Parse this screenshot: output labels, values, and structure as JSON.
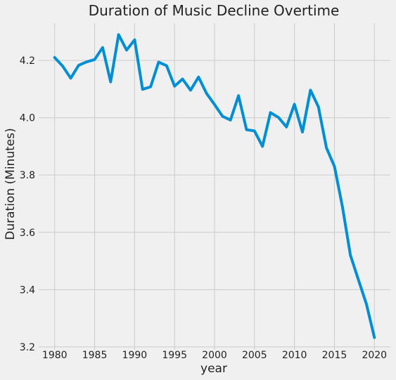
{
  "chart_data": {
    "type": "line",
    "title": "Duration of Music Decline Overtime",
    "xlabel": "year",
    "ylabel": "Duration (Minutes)",
    "xlim": [
      1978,
      2022
    ],
    "ylim": [
      3.19,
      4.33
    ],
    "xticks": [
      1980,
      1985,
      1990,
      1995,
      2000,
      2005,
      2010,
      2015,
      2020
    ],
    "yticks": [
      3.2,
      3.4,
      3.6,
      3.8,
      4.0,
      4.2
    ],
    "grid": true,
    "series_color": "#008fd5",
    "x": [
      1980,
      1981,
      1982,
      1983,
      1984,
      1985,
      1986,
      1987,
      1988,
      1989,
      1990,
      1991,
      1992,
      1993,
      1994,
      1995,
      1996,
      1997,
      1998,
      1999,
      2000,
      2001,
      2002,
      2003,
      2004,
      2005,
      2006,
      2007,
      2008,
      2009,
      2010,
      2011,
      2012,
      2013,
      2014,
      2015,
      2016,
      2017,
      2018,
      2019,
      2020
    ],
    "y": [
      4.21,
      4.18,
      4.138,
      4.183,
      4.195,
      4.203,
      4.245,
      4.125,
      4.29,
      4.236,
      4.272,
      4.099,
      4.108,
      4.194,
      4.182,
      4.11,
      4.135,
      4.096,
      4.142,
      4.085,
      4.046,
      4.005,
      3.992,
      4.077,
      3.958,
      3.954,
      3.9,
      4.018,
      4.001,
      3.968,
      4.047,
      3.95,
      4.096,
      4.038,
      3.895,
      3.83,
      3.69,
      3.52,
      3.435,
      3.35,
      3.233
    ]
  }
}
